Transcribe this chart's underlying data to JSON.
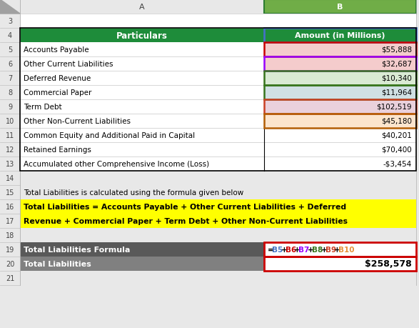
{
  "header_row": {
    "particulars": "Particulars",
    "amount": "Amount (in Millions)",
    "bg": "#1e8c3a",
    "fg": "#ffffff"
  },
  "data_rows": [
    {
      "label": "Accounts Payable",
      "value": "$55,888",
      "val_bg": "#f4cccc",
      "val_border": "#cc0000"
    },
    {
      "label": "Other Current Liabilities",
      "value": "$32,687",
      "val_bg": "#f4cccc",
      "val_border": "#9900ff"
    },
    {
      "label": "Deferred Revenue",
      "value": "$10,340",
      "val_bg": "#d9ead3",
      "val_border": "#38761d"
    },
    {
      "label": "Commercial Paper",
      "value": "$11,964",
      "val_bg": "#d0e0e3",
      "val_border": "#38761d"
    },
    {
      "label": "Term Debt",
      "value": "$102,519",
      "val_bg": "#ead1dc",
      "val_border": "#cc4125"
    },
    {
      "label": "Other Non-Current Liabilities",
      "value": "$45,180",
      "val_bg": "#fce5cd",
      "val_border": "#b45f06"
    },
    {
      "label": "Common Equity and Additional Paid in Capital",
      "value": "$40,201",
      "val_bg": "#ffffff",
      "val_border": null
    },
    {
      "label": "Retained Earnings",
      "value": "$70,400",
      "val_bg": "#ffffff",
      "val_border": null
    },
    {
      "label": "Accumulated other Comprehensive Income (Loss)",
      "value": "-$3,454",
      "val_bg": "#ffffff",
      "val_border": null
    }
  ],
  "formula_note": "Total Liabilities is calculated using the formula given below",
  "formula_text_line1": "Total Liabilities = Accounts Payable + Other Current Liabilities + Deferred",
  "formula_text_line2": "Revenue + Commercial Paper + Term Debt + Other Non-Current Liabilities",
  "formula_bg": "#ffff00",
  "row19_label": "Total Liabilities Formula",
  "row19_formula_parts": [
    {
      "text": "=",
      "color": "#000000"
    },
    {
      "text": "B5",
      "color": "#4472c4"
    },
    {
      "text": "+",
      "color": "#000000"
    },
    {
      "text": "B6",
      "color": "#cc0000"
    },
    {
      "text": "+",
      "color": "#000000"
    },
    {
      "text": "B7",
      "color": "#9900ff"
    },
    {
      "text": "+",
      "color": "#000000"
    },
    {
      "text": "B8",
      "color": "#38761d"
    },
    {
      "text": "+",
      "color": "#000000"
    },
    {
      "text": "B9",
      "color": "#cc4125"
    },
    {
      "text": "+",
      "color": "#000000"
    },
    {
      "text": "B10",
      "color": "#e69138"
    }
  ],
  "row20_label": "Total Liabilities",
  "row20_value": "$258,578",
  "row19_bg": "#595959",
  "row20_bg": "#808080",
  "bg_color": "#e8e8e8",
  "col_header_bg": "#70ad47",
  "col_header_b_border": "#2d7d32",
  "white": "#ffffff",
  "grid_color": "#c8c8c8",
  "outer_border": "#000000",
  "red_border": "#cc0000",
  "blue_sel": "#4472c4"
}
